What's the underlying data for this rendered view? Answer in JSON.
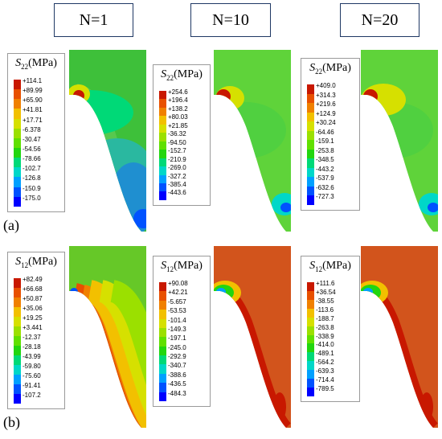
{
  "column_headers": [
    "N=1",
    "N=10",
    "N=20"
  ],
  "row_labels": [
    "(a)",
    "(b)"
  ],
  "legend_symbol": "S",
  "legend_unit": "(MPa)",
  "colors": {
    "scale": [
      "#0000ff",
      "#0052ff",
      "#00a0ff",
      "#00d7c8",
      "#00d977",
      "#22d60f",
      "#60e000",
      "#9be000",
      "#d6e000",
      "#f2c000",
      "#f08000",
      "#e85000",
      "#c81800"
    ],
    "border": "#1f3864"
  },
  "rows": [
    {
      "subscript": "22",
      "panels": [
        {
          "ticks": [
            "+114.1",
            "+89.99",
            "+65.90",
            "+41.81",
            "+17.71",
            "-6.378",
            "-30.47",
            "-54.56",
            "-78.66",
            "-102.7",
            "-126.8",
            "-150.9",
            "-175.0"
          ],
          "field": {
            "bg": "#3ec03a",
            "zones": [
              {
                "type": "band",
                "offset": 0,
                "color": "#58c84e",
                "w": 14
              },
              {
                "type": "ellipse",
                "cx": 25,
                "cy": 78,
                "rx": 55,
                "ry": 28,
                "color": "#00d977"
              },
              {
                "type": "ellipse",
                "cx": 60,
                "cy": 150,
                "rx": 45,
                "ry": 40,
                "color": "#2ab8a0"
              },
              {
                "type": "ellipse",
                "cx": 80,
                "cy": 185,
                "rx": 30,
                "ry": 45,
                "color": "#1f8fd0"
              },
              {
                "type": "ellipse",
                "cx": 92,
                "cy": 210,
                "rx": 12,
                "ry": 12,
                "color": "#0052ff"
              },
              {
                "type": "ellipse",
                "cx": 12,
                "cy": 55,
                "rx": 14,
                "ry": 12,
                "color": "#d6e000"
              },
              {
                "type": "ellipse",
                "cx": 12,
                "cy": 57,
                "rx": 7,
                "ry": 7,
                "color": "#c81800"
              }
            ]
          }
        },
        {
          "ticks": [
            "+254.6",
            "+196.4",
            "+138.2",
            "+80.03",
            "+21.85",
            "-36.32",
            "-94.50",
            "-152.7",
            "-210.9",
            "-269.0",
            "-327.2",
            "-385.4",
            "-443.6"
          ],
          "field": {
            "bg": "#5fd33a",
            "zones": [
              {
                "type": "ellipse",
                "cx": 40,
                "cy": 100,
                "rx": 50,
                "ry": 35,
                "color": "#50d040"
              },
              {
                "type": "ellipse",
                "cx": 88,
                "cy": 192,
                "rx": 16,
                "ry": 14,
                "color": "#00d7c8"
              },
              {
                "type": "ellipse",
                "cx": 90,
                "cy": 196,
                "rx": 7,
                "ry": 6,
                "color": "#0052ff"
              },
              {
                "type": "ellipse",
                "cx": 20,
                "cy": 60,
                "rx": 18,
                "ry": 15,
                "color": "#d6e000"
              },
              {
                "type": "ellipse",
                "cx": 12,
                "cy": 58,
                "rx": 9,
                "ry": 9,
                "color": "#c81800"
              }
            ]
          }
        },
        {
          "ticks": [
            "+409.0",
            "+314.3",
            "+219.6",
            "+124.9",
            "+30.24",
            "-64.46",
            "-159.1",
            "-253.8",
            "-348.5",
            "-443.2",
            "-537.9",
            "-632.6",
            "-727.3"
          ],
          "field": {
            "bg": "#5fd33a",
            "zones": [
              {
                "type": "ellipse",
                "cx": 40,
                "cy": 100,
                "rx": 50,
                "ry": 35,
                "color": "#50d040"
              },
              {
                "type": "ellipse",
                "cx": 88,
                "cy": 192,
                "rx": 16,
                "ry": 14,
                "color": "#00d7c8"
              },
              {
                "type": "ellipse",
                "cx": 90,
                "cy": 196,
                "rx": 7,
                "ry": 6,
                "color": "#0052ff"
              },
              {
                "type": "ellipse",
                "cx": 28,
                "cy": 62,
                "rx": 28,
                "ry": 20,
                "color": "#d6e000"
              },
              {
                "type": "ellipse",
                "cx": 12,
                "cy": 58,
                "rx": 9,
                "ry": 9,
                "color": "#c81800"
              }
            ]
          }
        }
      ]
    },
    {
      "subscript": "12",
      "panels": [
        {
          "ticks": [
            "+82.49",
            "+66.68",
            "+50.87",
            "+35.06",
            "+19.25",
            "+3.441",
            "-12.37",
            "-28.18",
            "-43.99",
            "-59.80",
            "-75.60",
            "-91.41",
            "-107.2"
          ],
          "field": {
            "bg": "#66c828",
            "zones": [
              {
                "type": "band",
                "offset": 0,
                "color": "#e85000",
                "w": 10
              },
              {
                "type": "band",
                "offset": 10,
                "color": "#f08000",
                "w": 8
              },
              {
                "type": "band",
                "offset": 18,
                "color": "#f2c000",
                "w": 14
              },
              {
                "type": "band",
                "offset": 32,
                "color": "#d6e000",
                "w": 14
              },
              {
                "type": "band",
                "offset": 46,
                "color": "#9be000",
                "w": 14
              },
              {
                "type": "ellipse",
                "cx": 6,
                "cy": 57,
                "rx": 5,
                "ry": 5,
                "color": "#0052ff"
              }
            ]
          }
        },
        {
          "ticks": [
            "+90.08",
            "+42.21",
            "-5.657",
            "-53.53",
            "-101.4",
            "-149.3",
            "-197.1",
            "-245.0",
            "-292.9",
            "-340.7",
            "-388.6",
            "-436.5",
            "-484.3"
          ],
          "field": {
            "bg": "#d2541c",
            "zones": [
              {
                "type": "band",
                "offset": 0,
                "color": "#c81800",
                "w": 8
              },
              {
                "type": "ellipse",
                "cx": 14,
                "cy": 58,
                "rx": 20,
                "ry": 15,
                "color": "#f2c000"
              },
              {
                "type": "ellipse",
                "cx": 12,
                "cy": 58,
                "rx": 13,
                "ry": 10,
                "color": "#22d60f"
              },
              {
                "type": "ellipse",
                "cx": 9,
                "cy": 57,
                "rx": 6,
                "ry": 5,
                "color": "#00a0ff"
              },
              {
                "type": "ellipse",
                "cx": 82,
                "cy": 200,
                "rx": 8,
                "ry": 18,
                "color": "#c81800"
              }
            ]
          }
        },
        {
          "ticks": [
            "+111.6",
            "+36.54",
            "-38.55",
            "-113.6",
            "-188.7",
            "-263.8",
            "-338.9",
            "-414.0",
            "-489.1",
            "-564.2",
            "-639.3",
            "-714.4",
            "-789.5"
          ],
          "field": {
            "bg": "#d2541c",
            "zones": [
              {
                "type": "band",
                "offset": 0,
                "color": "#c81800",
                "w": 8
              },
              {
                "type": "ellipse",
                "cx": 14,
                "cy": 58,
                "rx": 20,
                "ry": 15,
                "color": "#f2c000"
              },
              {
                "type": "ellipse",
                "cx": 12,
                "cy": 58,
                "rx": 13,
                "ry": 10,
                "color": "#22d60f"
              },
              {
                "type": "ellipse",
                "cx": 9,
                "cy": 57,
                "rx": 6,
                "ry": 5,
                "color": "#00a0ff"
              },
              {
                "type": "ellipse",
                "cx": 82,
                "cy": 200,
                "rx": 8,
                "ry": 18,
                "color": "#c81800"
              }
            ]
          }
        }
      ]
    }
  ]
}
